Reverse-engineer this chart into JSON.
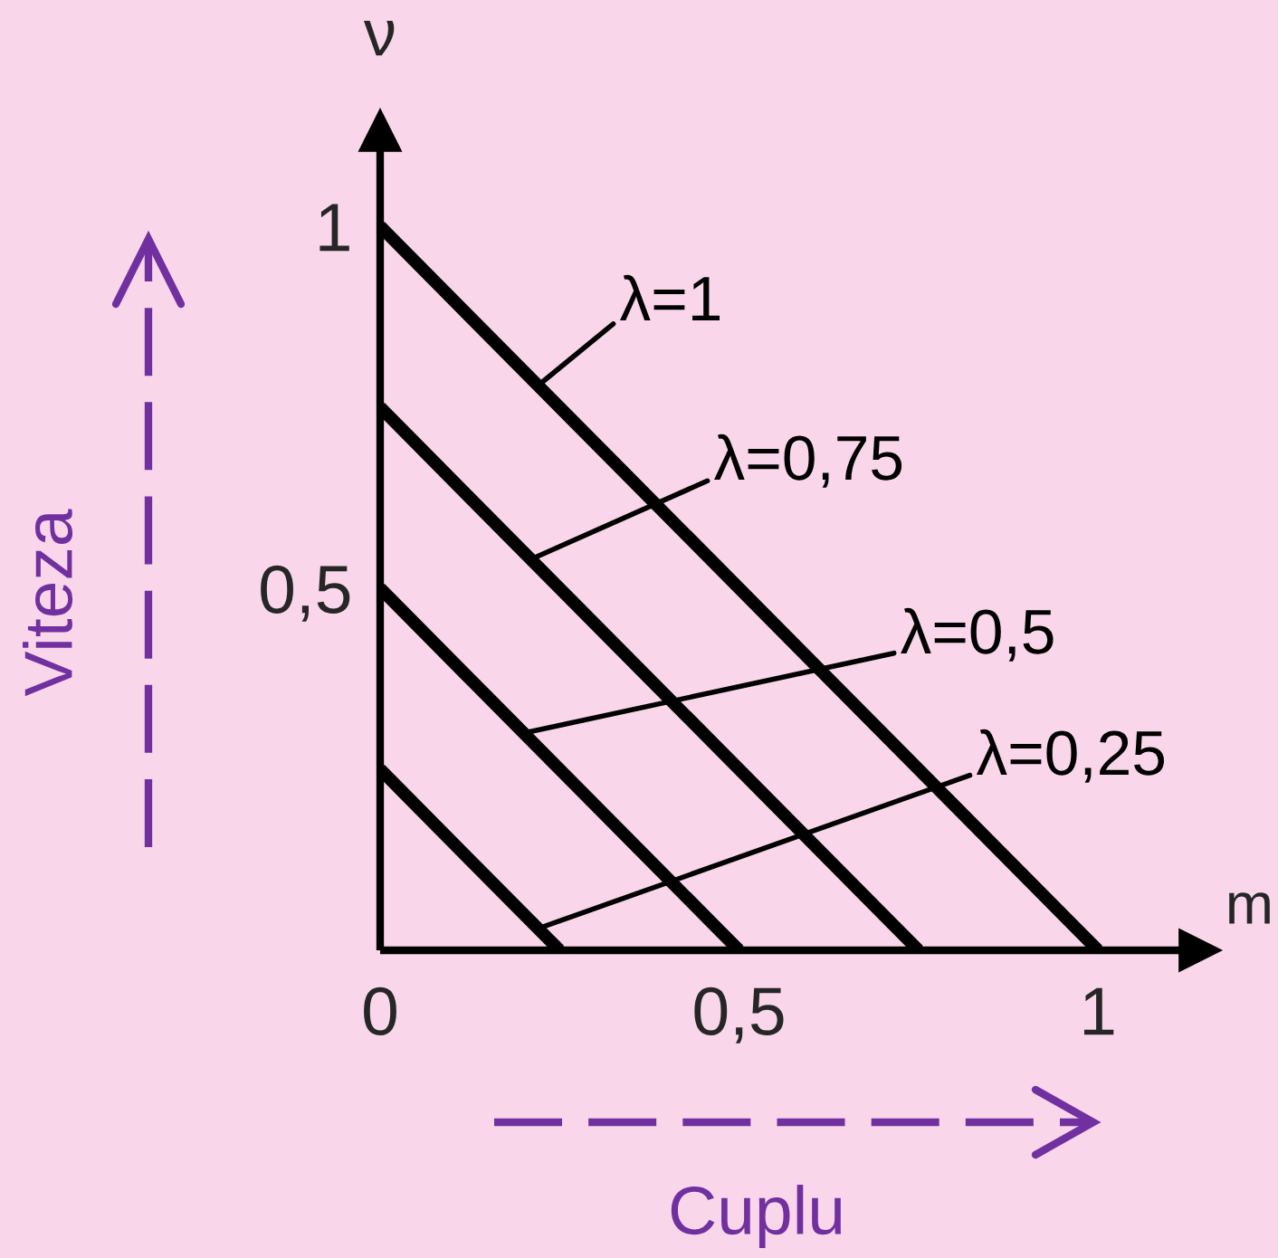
{
  "chart_data": {
    "type": "line",
    "xlabel": "m",
    "ylabel": "ν",
    "xlim": [
      0,
      1.16
    ],
    "ylim": [
      0,
      1.15
    ],
    "xticks": [
      0,
      {
        "value": 0.5,
        "label": "0,5"
      },
      1
    ],
    "yticks": [
      {
        "value": 0.5,
        "label": "0,5"
      },
      1
    ],
    "grid": false,
    "line_style": "solid",
    "marker": "none",
    "series": [
      {
        "color": "#000000",
        "x": [
          0,
          1
        ],
        "values": [
          1,
          0
        ]
      },
      {
        "color": "#000000",
        "x": [
          0,
          0.75
        ],
        "values": [
          0.75,
          0
        ]
      },
      {
        "color": "#000000",
        "x": [
          0,
          0.5
        ],
        "values": [
          0.5,
          0
        ]
      },
      {
        "color": "#000000",
        "x": [
          0,
          0.25
        ],
        "values": [
          0.25,
          0
        ]
      }
    ],
    "annotations": [
      "Viteza",
      "Cuplu",
      {
        "text": "λ=1",
        "x": 0.22,
        "y": 0.78
      },
      {
        "text": "λ=0,75",
        "x": 0.21,
        "y": 0.54
      },
      {
        "text": "λ=0,5",
        "x": 0.2,
        "y": 0.3
      },
      {
        "text": "λ=0,25",
        "x": 0.22,
        "y": 0.03
      }
    ]
  }
}
